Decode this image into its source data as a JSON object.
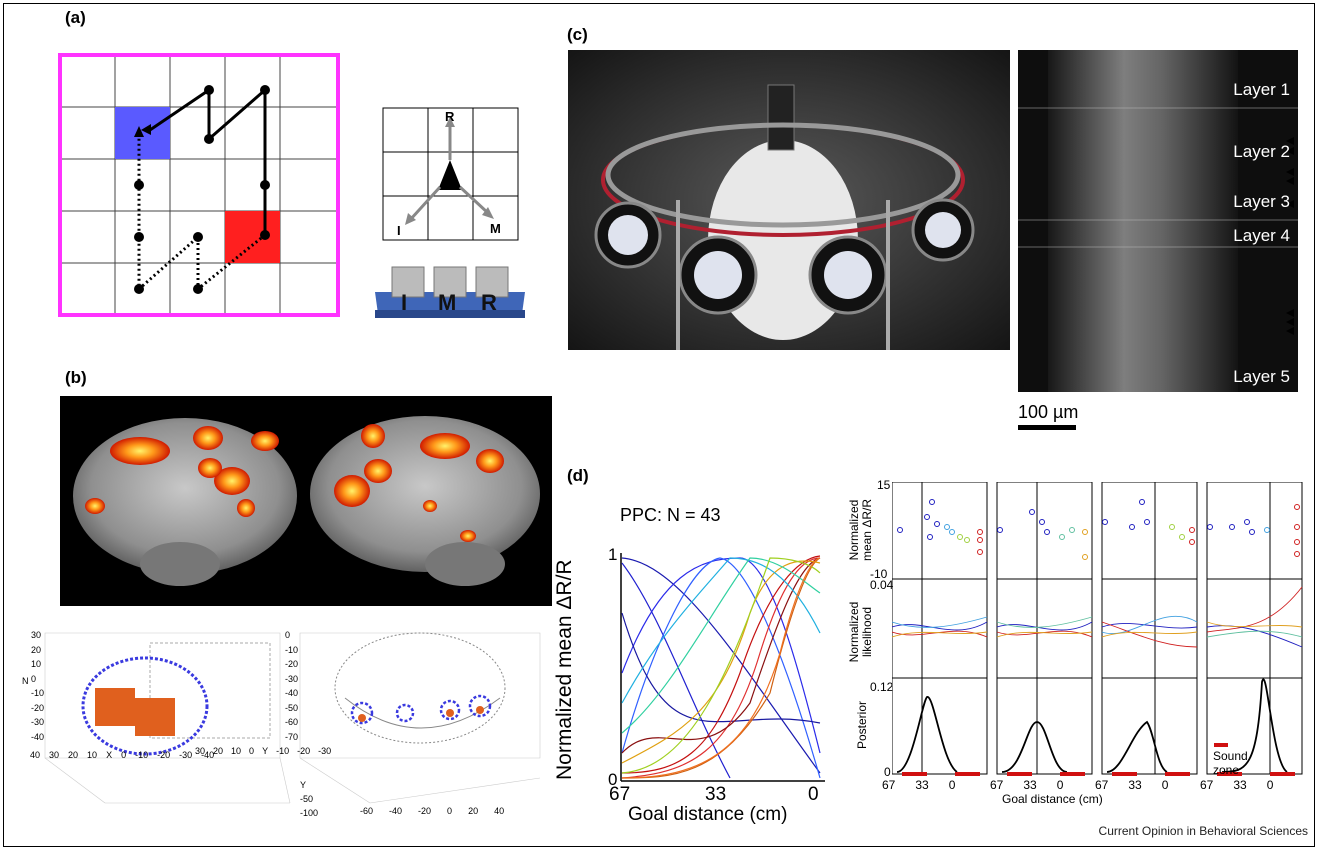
{
  "panels": {
    "a": "(a)",
    "b": "(b)",
    "c": "(c)",
    "d": "(d)"
  },
  "panel_a": {
    "direction_labels": {
      "r": "R",
      "i": "I",
      "m": "M"
    },
    "keys": [
      "I",
      "M",
      "R"
    ]
  },
  "panel_b": {
    "axes_left": {
      "z_ticks": [
        "30",
        "20",
        "10",
        "0",
        "-10",
        "-20",
        "-30",
        "-40"
      ],
      "z_label": "N",
      "x_ticks": [
        "40",
        "30",
        "20",
        "10",
        "0",
        "-10",
        "-20",
        "-30",
        "-40"
      ],
      "x_label": "X",
      "y_ticks": [
        "30",
        "20",
        "10",
        "0",
        "-10",
        "-20",
        "-30"
      ],
      "y_label": "Y"
    },
    "axes_right": {
      "z_ticks": [
        "0",
        "-10",
        "-20",
        "-30",
        "-40",
        "-50",
        "-60",
        "-70"
      ],
      "y_ticks": [
        "-50",
        "-100"
      ],
      "y_label": "Y",
      "x_ticks": [
        "-60",
        "-40",
        "-20",
        "0",
        "20",
        "40"
      ]
    }
  },
  "panel_c": {
    "layers": [
      "Layer 1",
      "Layer 2",
      "Layer 3",
      "Layer 4",
      "Layer 5"
    ],
    "scale_bar": "100 µm"
  },
  "panel_d": {
    "main_title": "PPC: N = 43",
    "main_ylabel": "Normalized mean ΔR/R",
    "main_xlabel": "Goal distance (cm)",
    "main_xticks": [
      "67",
      "33",
      "0"
    ],
    "main_yticks": [
      "1",
      "0"
    ],
    "row_labels": [
      "Normalized mean ΔR/R",
      "Normalized likelihood",
      "Posterior"
    ],
    "row1_yticks": [
      "15",
      "-10"
    ],
    "row2_yticks": [
      "0.04"
    ],
    "row3_yticks": [
      "0.12",
      "0"
    ],
    "small_xticks": [
      "67",
      "33",
      "0"
    ],
    "small_xlabel": "Goal distance (cm)",
    "legend_label": "Sound zone"
  },
  "footer": "Current Opinion in Behavioral Sciences"
}
